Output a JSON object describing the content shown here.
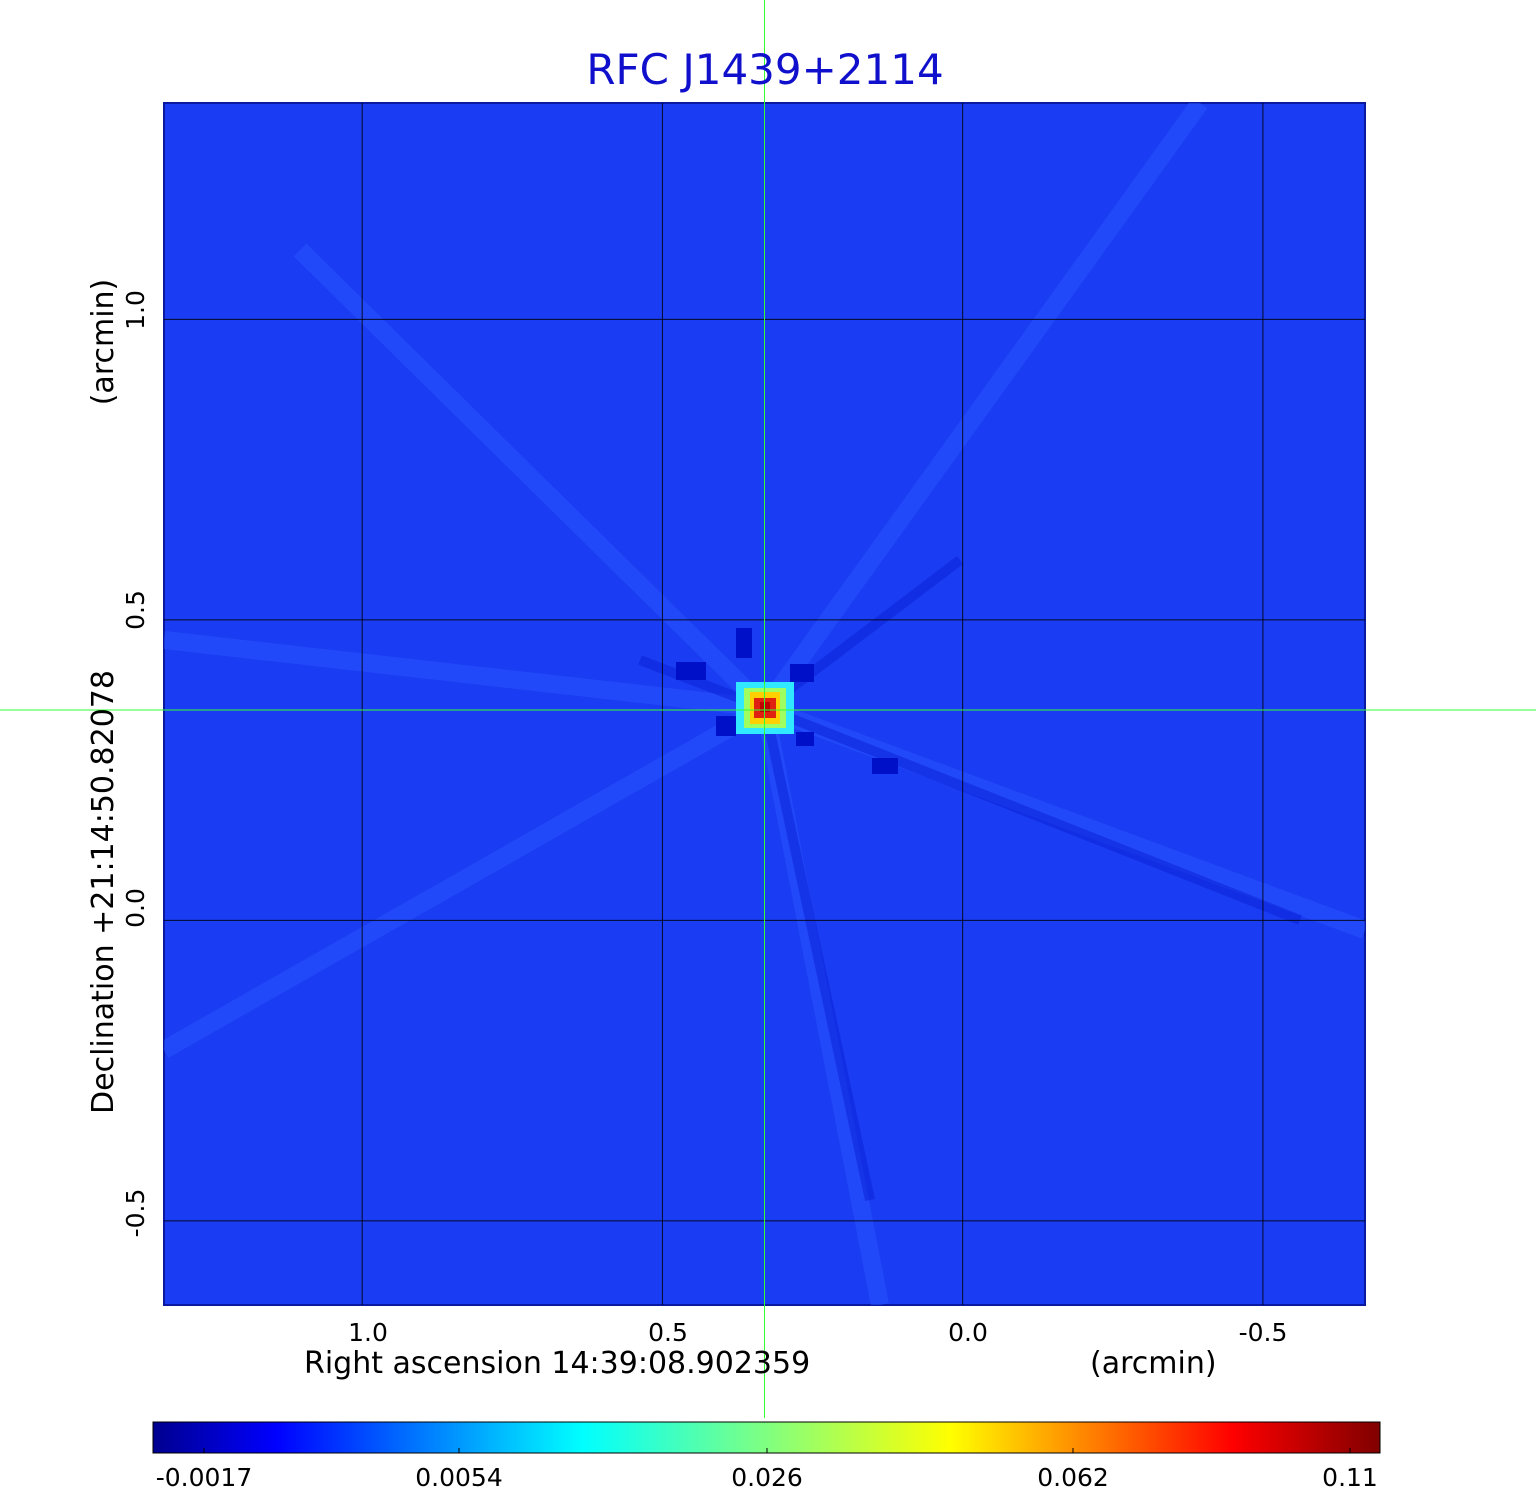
{
  "title": "RFC J1439+2114",
  "x_axis": {
    "label": "Right ascension  14:39:08.902359",
    "unit": "(arcmin)",
    "ticks": [
      "1.0",
      "0.5",
      "0.0",
      "-0.5"
    ],
    "tick_values": [
      1.0,
      0.5,
      0.0,
      -0.5
    ],
    "range": [
      1.33,
      -0.67
    ]
  },
  "y_axis": {
    "label": "Declination  +21:14:50.82078",
    "unit": "(arcmin)",
    "ticks": [
      "1.0",
      "0.5",
      "0.0",
      "-0.5"
    ],
    "tick_values": [
      1.0,
      0.5,
      0.0,
      -0.5
    ],
    "range": [
      -0.64,
      1.36
    ]
  },
  "colorbar": {
    "colormap": "jet",
    "ticks": [
      "-0.0017",
      "0.0054",
      "0.026",
      "0.062",
      "0.11"
    ],
    "tick_values": [
      -0.0017,
      0.0054,
      0.026,
      0.062,
      0.11
    ]
  },
  "source": {
    "ra_offset_arcmin": 0.33,
    "dec_offset_arcmin": 0.35
  },
  "colors": {
    "title": "#1010cc",
    "background_map": "#1a3cf2",
    "grid": "#000000",
    "crosshair": "#33ff33"
  },
  "grid": true
}
